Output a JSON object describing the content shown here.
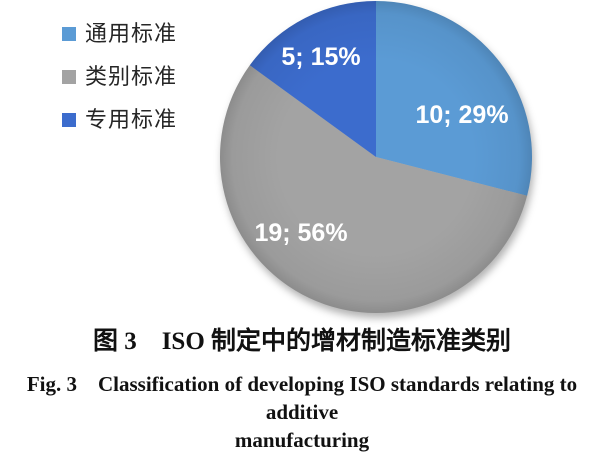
{
  "figure": {
    "caption_zh": "图 3 ISO 制定中的增材制造标准类别",
    "caption_en_line1": "Fig. 3 Classification of developing ISO standards relating to additive",
    "caption_en_line2": "manufacturing"
  },
  "legend": {
    "items": [
      {
        "label": "通用标准",
        "color": "#5B9BD5"
      },
      {
        "label": "类别标准",
        "color": "#A3A3A3"
      },
      {
        "label": "专用标准",
        "color": "#3C6CCD"
      }
    ]
  },
  "chart_data": {
    "type": "pie",
    "title": "",
    "categories": [
      "通用标准",
      "类别标准",
      "专用标准"
    ],
    "values": [
      10,
      19,
      5
    ],
    "percents": [
      29,
      56,
      15
    ],
    "labels": [
      "10; 29%",
      "19; 56%",
      "5; 15%"
    ],
    "colors": [
      "#5B9BD5",
      "#A3A3A3",
      "#3C6CCD"
    ],
    "start_angle_deg": 0,
    "direction": "clockwise",
    "legend_position": "upper-left",
    "label_color": "#ffffff"
  }
}
